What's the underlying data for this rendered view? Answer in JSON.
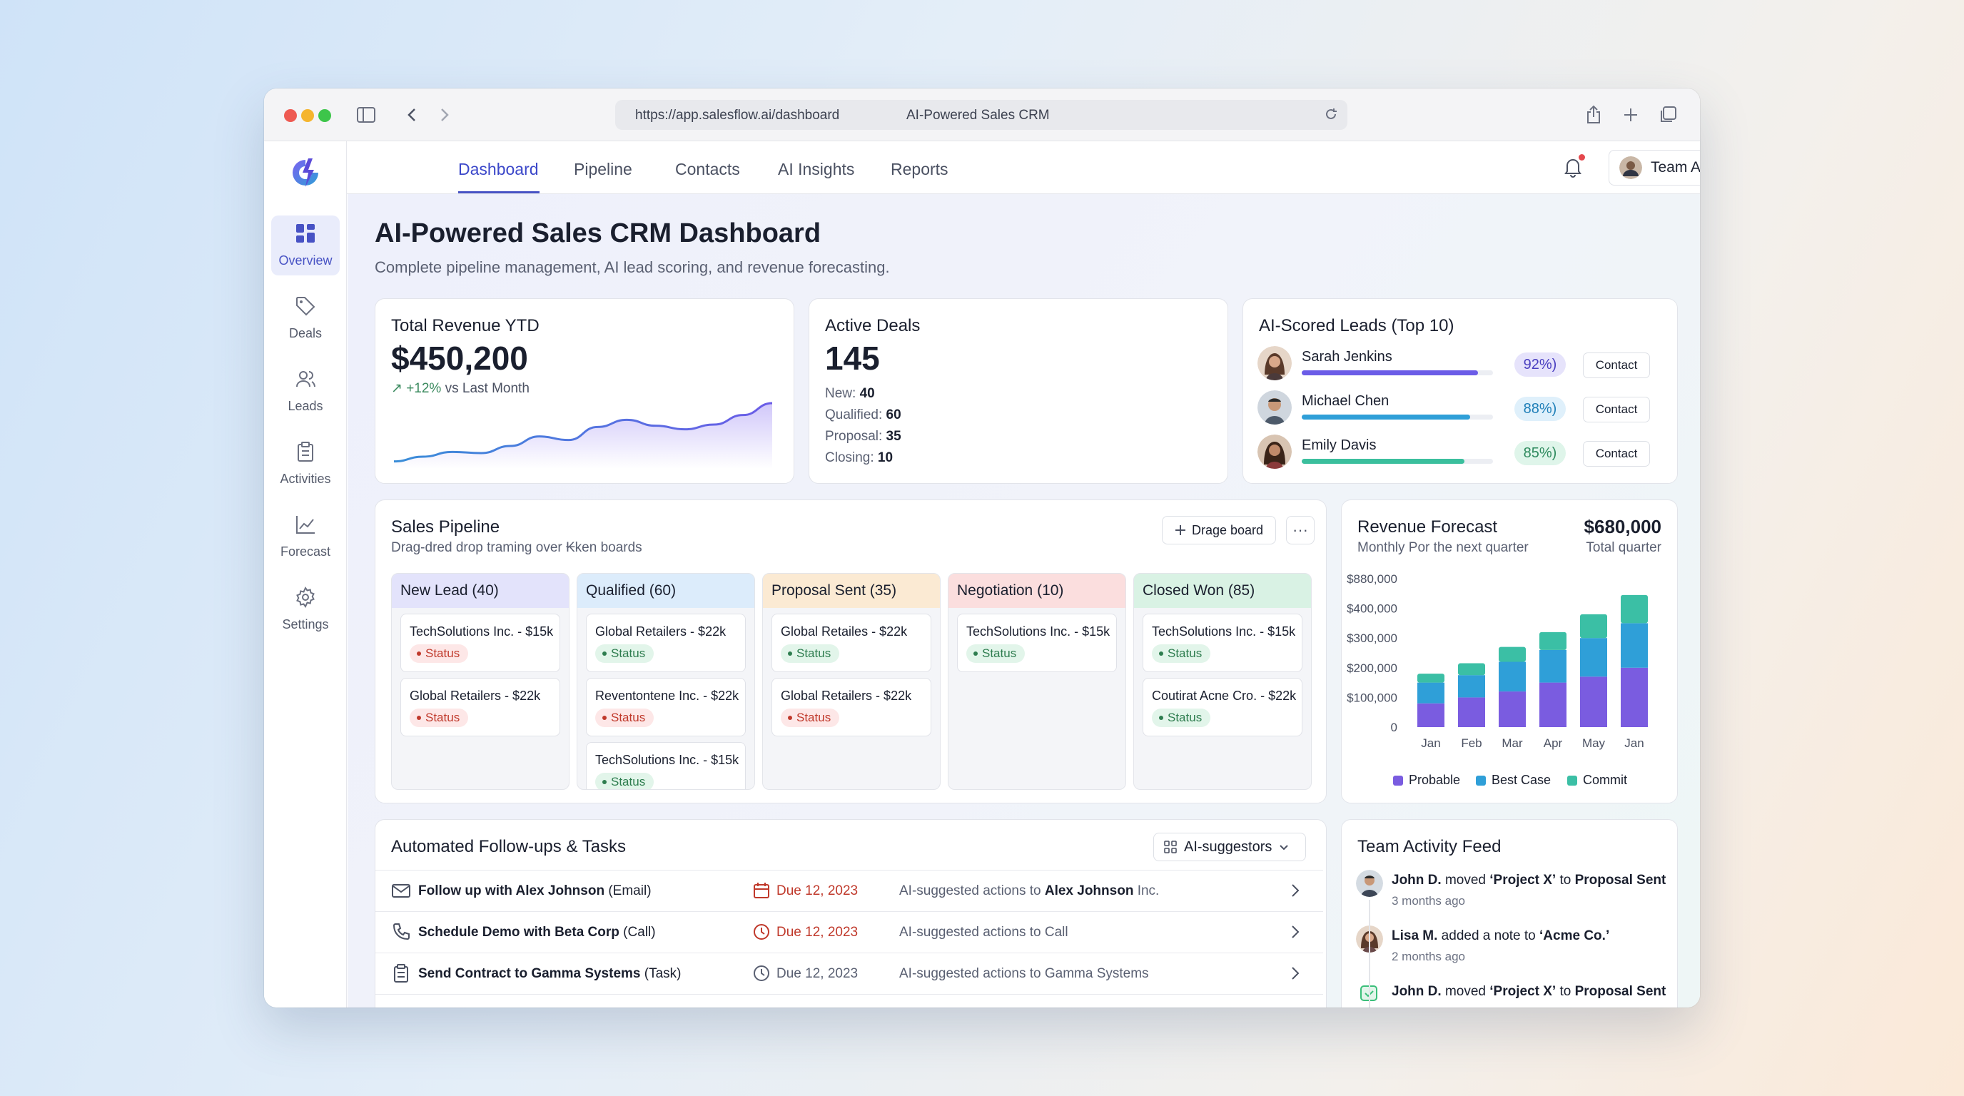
{
  "browser": {
    "url": "https://app.salesflow.ai/dashboard",
    "page_title": "AI-Powered Sales CRM"
  },
  "sidebar": {
    "items": [
      {
        "label": "Overview",
        "icon": "grid-icon"
      },
      {
        "label": "Deals",
        "icon": "tag-icon"
      },
      {
        "label": "Leads",
        "icon": "users-icon"
      },
      {
        "label": "Activities",
        "icon": "clipboard-icon"
      },
      {
        "label": "Forecast",
        "icon": "chart-line-icon"
      },
      {
        "label": "Settings",
        "icon": "gear-icon"
      }
    ]
  },
  "topnav": {
    "tabs": [
      "Dashboard",
      "Pipeline",
      "Contacts",
      "AI Insights",
      "Reports"
    ],
    "team_label": "Team Alpha"
  },
  "header": {
    "title": "AI-Powered Sales CRM Dashboard",
    "subtitle": "Complete pipeline management, AI lead scoring, and revenue forecasting."
  },
  "revenue": {
    "title": "Total Revenue YTD",
    "value": "$450,200",
    "trend_up": "+12%",
    "trend_rest": " vs Last Month",
    "sparkline": [
      10,
      18,
      26,
      24,
      36,
      52,
      46,
      68,
      80,
      70,
      64,
      72,
      88,
      108
    ]
  },
  "active_deals": {
    "title": "Active Deals",
    "value": "145",
    "lines": [
      {
        "label": "New: ",
        "value": "40"
      },
      {
        "label": "Qualified: ",
        "value": "60"
      },
      {
        "label": "Proposal: ",
        "value": "35"
      },
      {
        "label": "Closing: ",
        "value": "10"
      }
    ]
  },
  "ai_leads": {
    "title": "AI-Scored Leads (Top 10)",
    "contact_label": "Contact",
    "leads": [
      {
        "name": "Sarah Jenkins",
        "score": "92%)",
        "fill": 0.92,
        "color": "#6b5ce7"
      },
      {
        "name": "Michael Chen",
        "score": "88%)",
        "fill": 0.88,
        "color": "#2f9fd8"
      },
      {
        "name": "Emily Davis",
        "score": "85%)",
        "fill": 0.85,
        "color": "#3bbf9d"
      }
    ]
  },
  "pipeline": {
    "title": "Sales Pipeline",
    "subtitle": "Drag-dred drop traming over ₭ken boards",
    "drag_label": "Drage board",
    "more_label": "···",
    "columns": [
      {
        "title": "New Lead (40)",
        "color": "#e3e3fb",
        "deals": [
          {
            "name": "TechSolutions Inc. - $15k",
            "status": "Status",
            "tone": "red"
          },
          {
            "name": "Global Retailers - $22k",
            "status": "Status",
            "tone": "red"
          }
        ]
      },
      {
        "title": "Qualified (60)",
        "color": "#dcecfb",
        "deals": [
          {
            "name": "Global Retailers - $22k",
            "status": "Status",
            "tone": "green"
          },
          {
            "name": "Reventontene Inc. - $22k",
            "status": "Status",
            "tone": "red"
          },
          {
            "name": "TechSolutions Inc. - $15k",
            "status": "Status",
            "tone": "green"
          }
        ]
      },
      {
        "title": "Proposal Sent (35)",
        "color": "#fbead3",
        "deals": [
          {
            "name": "Global Retailes - $22k",
            "status": "Status",
            "tone": "green"
          },
          {
            "name": "Global Retailers - $22k",
            "status": "Status",
            "tone": "red"
          }
        ]
      },
      {
        "title": "Negotiation (10)",
        "color": "#fbdede",
        "deals": [
          {
            "name": "TechSolutions Inc. - $15k",
            "status": "Status",
            "tone": "green"
          }
        ]
      },
      {
        "title": "Closed Won (85)",
        "color": "#d9f2e4",
        "deals": [
          {
            "name": "TechSolutions Inc. - $15k",
            "status": "Status",
            "tone": "green"
          },
          {
            "name": "Coutirat Acne Cro. - $22k",
            "status": "Status",
            "tone": "green"
          }
        ]
      }
    ]
  },
  "forecast": {
    "title": "Revenue Forecast",
    "value": "$680,000",
    "subtitle": "Monthly Por the next quarter",
    "subtitle_right": "Total quarter",
    "legend": [
      {
        "label": "Probable",
        "color": "#7a5ce0"
      },
      {
        "label": "Best Case",
        "color": "#2f9fd8"
      },
      {
        "label": "Commit",
        "color": "#3bbfa5"
      }
    ]
  },
  "chart_data": {
    "type": "bar",
    "stacked": true,
    "categories": [
      "Jan",
      "Feb",
      "Mar",
      "Apr",
      "May",
      "Jan"
    ],
    "y_tick_labels": [
      "$880,000",
      "$400,000",
      "$300,000",
      "$200,000",
      "$100,000",
      "0"
    ],
    "series": [
      {
        "name": "Probable",
        "values": [
          80000,
          100000,
          120000,
          150000,
          170000,
          200000
        ]
      },
      {
        "name": "Best Case",
        "values": [
          70000,
          75000,
          100000,
          110000,
          130000,
          150000
        ]
      },
      {
        "name": "Commit",
        "values": [
          30000,
          40000,
          50000,
          60000,
          80000,
          95000
        ]
      }
    ],
    "grid": false,
    "legend_position": "bottom"
  },
  "tasks": {
    "title": "Automated Follow-ups & Tasks",
    "ai_label": "AI-suggestors",
    "rows": [
      {
        "icon": "mail-icon",
        "title": "Follow up with Alex Johnson",
        "kind": " (Email)",
        "due": "Due 12, 2023",
        "due_tone": "red",
        "due_icon": "calendar-icon",
        "ai_prefix": "AI-suggested actions to ",
        "ai_strong": "Alex Johnson",
        "ai_suffix": " Inc."
      },
      {
        "icon": "phone-icon",
        "title": "Schedule Demo with Beta Corp",
        "kind": " (Call)",
        "due": "Due 12, 2023",
        "due_tone": "red",
        "due_icon": "clock-icon",
        "ai_prefix": "AI-suggested actions to Call",
        "ai_strong": "",
        "ai_suffix": ""
      },
      {
        "icon": "clipboard-icon",
        "title": "Send Contract to Gamma Systems",
        "kind": " (Task)",
        "due": "Due 12, 2023",
        "due_tone": "gray",
        "due_icon": "clock-icon",
        "ai_prefix": "AI-suggested actions to Gamma Systems",
        "ai_strong": "",
        "ai_suffix": ""
      }
    ]
  },
  "activity": {
    "title": "Team Activity Feed",
    "items": [
      {
        "who": "John D.",
        "verb": " moved ",
        "obj": "‘Project X’",
        "mid": " to ",
        "target": "Proposal Sent",
        "time": "3 months ago"
      },
      {
        "who": "Lisa M.",
        "verb": " added a note to ",
        "obj": "‘Acme Co.’",
        "mid": "",
        "target": "",
        "time": "2 months ago"
      },
      {
        "who": "John D.",
        "verb": " moved ",
        "obj": "‘Project X’",
        "mid": " to ",
        "target": "Proposal Sent",
        "time": ""
      }
    ]
  }
}
